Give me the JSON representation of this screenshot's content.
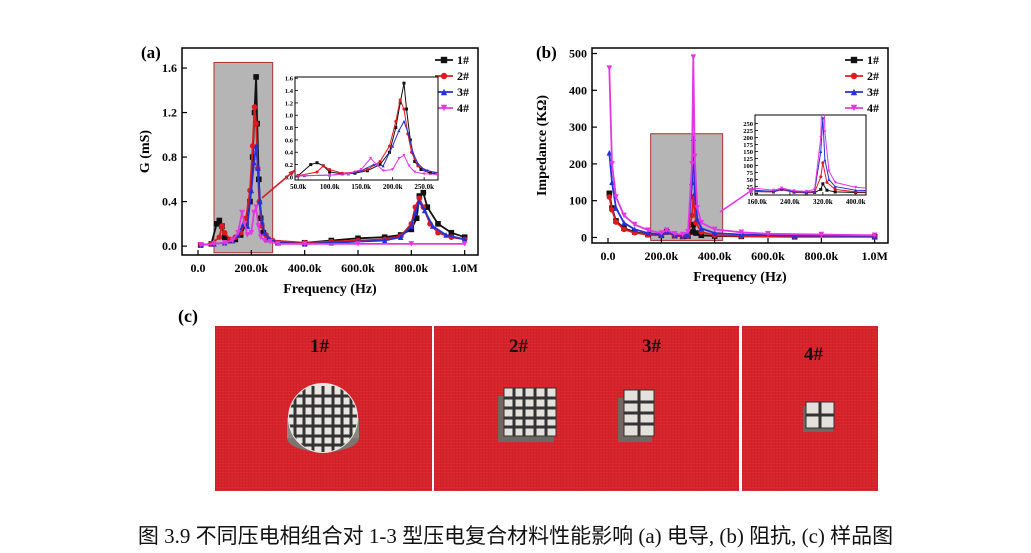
{
  "figure": {
    "caption": "图 3.9  不同压电相组合对 1-3 型压电复合材料性能影响  (a)  电导, (b)  阻抗, (c)  样品图"
  },
  "panel_labels": {
    "a": "(a)",
    "b": "(b)",
    "c": "(c)"
  },
  "legend": [
    "1#",
    "2#",
    "3#",
    "4#"
  ],
  "colors": {
    "s1": "#111111",
    "s2": "#e0191f",
    "s3": "#2430d8",
    "s4": "#e437e4",
    "box": "#b5b5b5"
  },
  "chart_data": [
    {
      "type": "line",
      "ylabel": "G (mS)",
      "xlabel": "Frequency (Hz)",
      "xlim": [
        -60000,
        1050000
      ],
      "ylim": [
        -0.08,
        1.78
      ],
      "xticks": [
        0,
        200000,
        400000,
        600000,
        800000,
        1000000
      ],
      "xtick_labels": [
        "0.0",
        "200.0k",
        "400.0k",
        "600.0k",
        "800.0k",
        "1.0M"
      ],
      "yticks": [
        0,
        0.4,
        0.8,
        1.2,
        1.6
      ],
      "ytick_labels": [
        "0.0",
        "0.4",
        "0.8",
        "1.2",
        "1.6"
      ],
      "legend_position": "top-right",
      "series": [
        {
          "name": "1#",
          "x": [
            10000,
            50000,
            70000,
            80000,
            90000,
            100000,
            120000,
            140000,
            160000,
            180000,
            195000,
            205000,
            212000,
            218000,
            222000,
            228000,
            235000,
            245000,
            260000,
            300000,
            400000,
            500000,
            600000,
            700000,
            760000,
            800000,
            820000,
            830000,
            845000,
            860000,
            900000,
            950000,
            1000000
          ],
          "y": [
            0.01,
            0.02,
            0.2,
            0.23,
            0.18,
            0.08,
            0.05,
            0.06,
            0.1,
            0.2,
            0.4,
            0.8,
            1.2,
            1.52,
            1.1,
            0.6,
            0.25,
            0.12,
            0.06,
            0.03,
            0.03,
            0.05,
            0.07,
            0.08,
            0.1,
            0.15,
            0.25,
            0.45,
            0.48,
            0.35,
            0.2,
            0.12,
            0.08
          ]
        },
        {
          "name": "2#",
          "x": [
            10000,
            50000,
            80000,
            90000,
            100000,
            120000,
            140000,
            160000,
            180000,
            195000,
            205000,
            212000,
            218000,
            224000,
            230000,
            240000,
            255000,
            280000,
            400000,
            500000,
            600000,
            700000,
            760000,
            800000,
            815000,
            830000,
            845000,
            870000,
            900000,
            950000,
            1000000
          ],
          "y": [
            0.01,
            0.02,
            0.08,
            0.18,
            0.12,
            0.06,
            0.08,
            0.12,
            0.25,
            0.5,
            0.9,
            1.25,
            1.1,
            0.7,
            0.4,
            0.18,
            0.1,
            0.05,
            0.03,
            0.04,
            0.05,
            0.06,
            0.09,
            0.2,
            0.35,
            0.43,
            0.35,
            0.2,
            0.12,
            0.08,
            0.06
          ]
        },
        {
          "name": "3#",
          "x": [
            10000,
            60000,
            100000,
            130000,
            150000,
            170000,
            185000,
            200000,
            210000,
            218000,
            225000,
            232000,
            240000,
            250000,
            270000,
            300000,
            400000,
            500000,
            600000,
            700000,
            760000,
            800000,
            815000,
            830000,
            850000,
            880000,
            930000,
            1000000
          ],
          "y": [
            0.01,
            0.02,
            0.03,
            0.05,
            0.1,
            0.2,
            0.18,
            0.5,
            0.75,
            0.9,
            0.7,
            0.4,
            0.22,
            0.12,
            0.06,
            0.03,
            0.02,
            0.03,
            0.04,
            0.05,
            0.08,
            0.18,
            0.3,
            0.4,
            0.32,
            0.18,
            0.1,
            0.06
          ]
        },
        {
          "name": "4#",
          "x": [
            10000,
            60000,
            100000,
            130000,
            150000,
            165000,
            175000,
            185000,
            200000,
            210000,
            218000,
            226000,
            235000,
            250000,
            270000,
            300000,
            400000,
            600000,
            800000,
            1000000
          ],
          "y": [
            0.01,
            0.02,
            0.03,
            0.05,
            0.12,
            0.3,
            0.2,
            0.1,
            0.12,
            0.3,
            0.35,
            0.18,
            0.08,
            0.05,
            0.04,
            0.02,
            0.02,
            0.02,
            0.02,
            0.02
          ]
        }
      ],
      "highlight_box": {
        "x": [
          60000,
          280000
        ],
        "y": [
          -0.06,
          1.65
        ]
      },
      "inset": {
        "xlim": [
          45000,
          272000
        ],
        "ylim": [
          -0.05,
          1.62
        ],
        "xticks": [
          50000,
          100000,
          150000,
          200000,
          250000
        ],
        "xtick_labels": [
          "50.0k",
          "100.0k",
          "150.0k",
          "200.0k",
          "250.0k"
        ],
        "yticks": [
          0,
          0.2,
          0.4,
          0.6,
          0.8,
          1.0,
          1.2,
          1.4,
          1.6
        ],
        "ytick_labels": [
          "0.0",
          "0.2",
          "0.4",
          "0.6",
          "0.8",
          "1.0",
          "1.2",
          "1.4",
          "1.6"
        ]
      }
    },
    {
      "type": "line",
      "ylabel": "Impedance (KΩ)",
      "xlabel": "Frequency (Hz)",
      "xlim": [
        -60000,
        1050000
      ],
      "ylim": [
        -15,
        515
      ],
      "xticks": [
        0,
        200000,
        400000,
        600000,
        800000,
        1000000
      ],
      "xtick_labels": [
        "0.0",
        "200.0k",
        "400.0k",
        "600.0k",
        "800.0k",
        "1.0M"
      ],
      "yticks": [
        0,
        100,
        200,
        300,
        400,
        500
      ],
      "ytick_labels": [
        "0",
        "100",
        "200",
        "300",
        "400",
        "500"
      ],
      "legend_position": "top-right",
      "series": [
        {
          "name": "1#",
          "x": [
            5000,
            15000,
            30000,
            60000,
            100000,
            150000,
            200000,
            220000,
            250000,
            280000,
            300000,
            315000,
            320000,
            330000,
            350000,
            400000,
            500000,
            700000,
            1000000
          ],
          "y": [
            120,
            80,
            45,
            25,
            15,
            8,
            6,
            15,
            5,
            3,
            4,
            15,
            35,
            12,
            6,
            4,
            3,
            2,
            2
          ]
        },
        {
          "name": "2#",
          "x": [
            5000,
            15000,
            30000,
            60000,
            100000,
            150000,
            200000,
            220000,
            250000,
            280000,
            300000,
            315000,
            320000,
            330000,
            350000,
            400000,
            500000,
            700000,
            1000000
          ],
          "y": [
            110,
            75,
            42,
            22,
            13,
            7,
            6,
            14,
            5,
            3,
            5,
            60,
            110,
            40,
            15,
            6,
            4,
            3,
            2
          ]
        },
        {
          "name": "3#",
          "x": [
            5000,
            15000,
            30000,
            60000,
            100000,
            150000,
            200000,
            220000,
            250000,
            280000,
            300000,
            315000,
            320000,
            325000,
            335000,
            350000,
            400000,
            500000,
            700000,
            1000000
          ],
          "y": [
            230,
            150,
            80,
            40,
            22,
            12,
            8,
            16,
            7,
            5,
            8,
            150,
            270,
            120,
            50,
            25,
            12,
            8,
            5,
            4
          ]
        },
        {
          "name": "4#",
          "x": [
            5000,
            15000,
            30000,
            60000,
            100000,
            150000,
            200000,
            220000,
            250000,
            280000,
            300000,
            315000,
            320000,
            325000,
            335000,
            350000,
            400000,
            500000,
            600000,
            800000,
            1000000
          ],
          "y": [
            460,
            200,
            110,
            60,
            35,
            20,
            12,
            20,
            10,
            8,
            15,
            200,
            490,
            220,
            80,
            40,
            22,
            14,
            10,
            8,
            6
          ]
        }
      ],
      "highlight_box": {
        "x": [
          160000,
          430000
        ],
        "y": [
          -8,
          282
        ]
      },
      "inset": {
        "xlim": [
          155000,
          425000
        ],
        "ylim": [
          -5,
          280
        ],
        "xticks": [
          160000,
          240000,
          320000,
          400000
        ],
        "xtick_labels": [
          "160.0k",
          "240.0k",
          "320.0k",
          "400.0k"
        ],
        "yticks": [
          0,
          25,
          50,
          75,
          100,
          125,
          150,
          175,
          200,
          225,
          250
        ],
        "ytick_labels": [
          "0",
          "25",
          "50",
          "75",
          "100",
          "125",
          "150",
          "175",
          "200",
          "225",
          "250"
        ]
      }
    }
  ],
  "photos": [
    {
      "labels": [
        "1#"
      ]
    },
    {
      "labels": [
        "2#",
        "3#"
      ]
    },
    {
      "labels": [
        "4#"
      ]
    }
  ]
}
